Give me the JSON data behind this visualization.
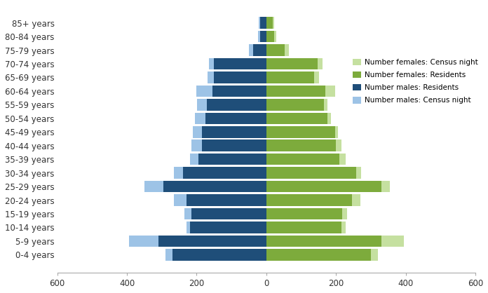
{
  "age_groups": [
    "0-4 years",
    "5-9 years",
    "10-14 years",
    "15-19 years",
    "20-24 years",
    "25-29 years",
    "30-34 years",
    "35-39 years",
    "40-44 years",
    "45-49 years",
    "50-54 years",
    "55-59 years",
    "60-64 years",
    "65-69 years",
    "70-74 years",
    "75-79 years",
    "80-84 years",
    "85+ years"
  ],
  "males_residents": [
    270,
    310,
    220,
    215,
    230,
    295,
    240,
    195,
    185,
    185,
    175,
    170,
    155,
    150,
    150,
    38,
    18,
    18
  ],
  "males_census_night": [
    290,
    395,
    230,
    235,
    265,
    350,
    265,
    220,
    215,
    210,
    205,
    198,
    200,
    168,
    165,
    50,
    24,
    22
  ],
  "females_residents": [
    300,
    330,
    215,
    218,
    245,
    330,
    258,
    210,
    200,
    198,
    175,
    165,
    170,
    138,
    148,
    52,
    22,
    18
  ],
  "females_census_night": [
    320,
    395,
    228,
    232,
    270,
    355,
    272,
    228,
    215,
    205,
    185,
    175,
    198,
    152,
    162,
    65,
    28,
    22
  ],
  "color_males_residents": "#1f4e79",
  "color_males_census_night": "#9dc3e6",
  "color_females_residents": "#7dab3c",
  "color_females_census_night": "#c5e0a0",
  "xlim": 600,
  "xticks": [
    -600,
    -400,
    -200,
    0,
    200,
    400,
    600
  ],
  "xticklabels": [
    "600",
    "400",
    "200",
    "0",
    "200",
    "400",
    "600"
  ],
  "legend_labels": [
    "Number females: Census night",
    "Number females: Residents",
    "Number males: Residents",
    "Number males: Census night"
  ],
  "legend_colors": [
    "#c5e0a0",
    "#7dab3c",
    "#1f4e79",
    "#9dc3e6"
  ]
}
